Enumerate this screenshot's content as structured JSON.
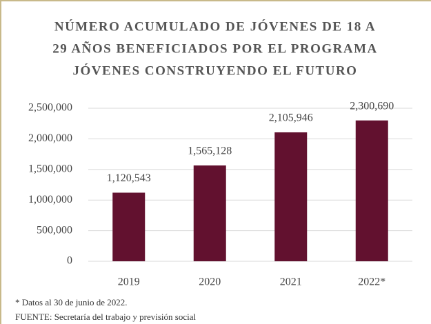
{
  "chart_data": {
    "type": "bar",
    "title": [
      "NÚMERO ACUMULADO  DE JÓVENES DE 18 A",
      "29 AÑOS BENEFICIADOS  POR EL PROGRAMA",
      "JÓVENES CONSTRUYENDO  EL FUTURO"
    ],
    "categories": [
      "2019",
      "2020",
      "2021",
      "2022*"
    ],
    "values": [
      1120543,
      1565128,
      2105946,
      2300690
    ],
    "value_labels": [
      "1,120,543",
      "1,565,128",
      "2,105,946",
      "2,300,690"
    ],
    "color": "#62112f",
    "ylim": [
      0,
      2500000
    ],
    "yticks": [
      0,
      {
        "value": 500000,
        "label": "500,000"
      },
      {
        "value": 1000000,
        "label": "1,000,000"
      },
      {
        "value": 1500000,
        "label": "1,500,000"
      },
      {
        "value": 2000000,
        "label": "2,000,000"
      },
      {
        "value": 2500000,
        "label": "2,500,000"
      }
    ],
    "grid": true,
    "notes": [
      "* Datos al 30 de junio de 2022.",
      "FUENTE: Secretaría del trabajo y previsión social"
    ]
  }
}
